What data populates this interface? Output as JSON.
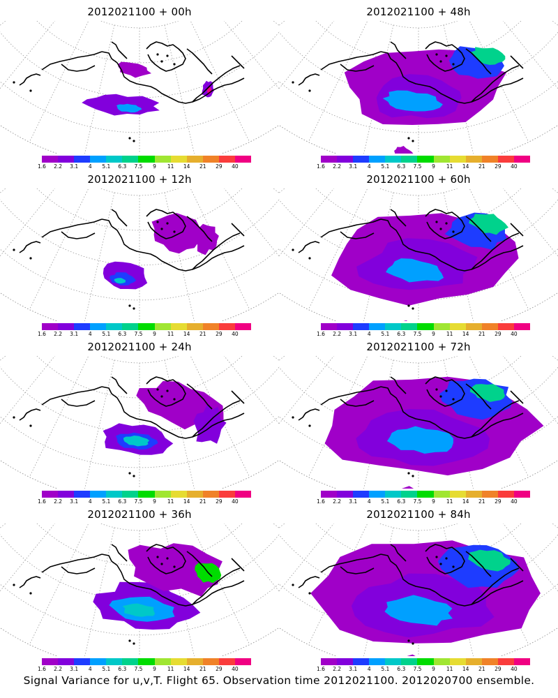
{
  "caption": "Signal Variance for u,v,T. Flight 65. Observation time 2012021100. 2012020700 ensemble.",
  "panels": [
    {
      "title": "2012021100 + 00h",
      "lead_hours": 0
    },
    {
      "title": "2012021100 + 48h",
      "lead_hours": 48
    },
    {
      "title": "2012021100 + 12h",
      "lead_hours": 12
    },
    {
      "title": "2012021100 + 60h",
      "lead_hours": 60
    },
    {
      "title": "2012021100 + 24h",
      "lead_hours": 24
    },
    {
      "title": "2012021100 + 72h",
      "lead_hours": 72
    },
    {
      "title": "2012021100 + 36h",
      "lead_hours": 36
    },
    {
      "title": "2012021100 + 84h",
      "lead_hours": 84
    }
  ],
  "colorbar": {
    "labels": [
      "1.6",
      "2.2",
      "3.1",
      "4",
      "5.1",
      "6.3",
      "7.5",
      "9",
      "11",
      "14",
      "21",
      "29",
      "40"
    ],
    "colors": [
      "#a000c8",
      "#8200dc",
      "#1e3cff",
      "#00a0ff",
      "#00c8c8",
      "#00d28c",
      "#00dc00",
      "#a0e632",
      "#e6dc32",
      "#e6af2d",
      "#f08228",
      "#fa3c3c",
      "#f00082"
    ]
  }
}
